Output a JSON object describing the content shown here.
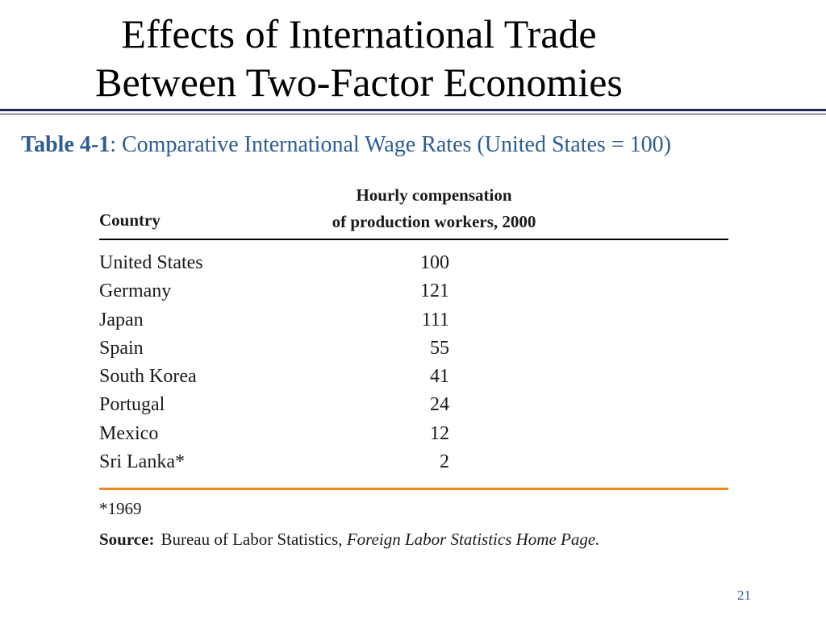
{
  "title": {
    "line1": "Effects of International Trade",
    "line2": "Between Two-Factor Economies"
  },
  "caption": {
    "label": "Table 4-1",
    "text": ": Comparative International Wage Rates (United States = 100)"
  },
  "table": {
    "header_country": "Country",
    "header_comp_line1": "Hourly compensation",
    "header_comp_line2": "of production workers, 2000",
    "rows": [
      {
        "country": "United States",
        "value": "100"
      },
      {
        "country": "Germany",
        "value": "121"
      },
      {
        "country": "Japan",
        "value": "111"
      },
      {
        "country": "Spain",
        "value": "55"
      },
      {
        "country": "South Korea",
        "value": "41"
      },
      {
        "country": "Portugal",
        "value": "24"
      },
      {
        "country": "Mexico",
        "value": "12"
      },
      {
        "country": "Sri Lanka*",
        "value": "2"
      }
    ]
  },
  "footnote": "*1969",
  "source": {
    "label": "Source:",
    "text": "Bureau of Labor Statistics, ",
    "publication": "Foreign Labor Statistics Home Page."
  },
  "page_number": "21",
  "colors": {
    "title": "#000000",
    "caption": "#2d5d93",
    "rule": "#1f2a5c",
    "orange_rule": "#f08a1c"
  }
}
